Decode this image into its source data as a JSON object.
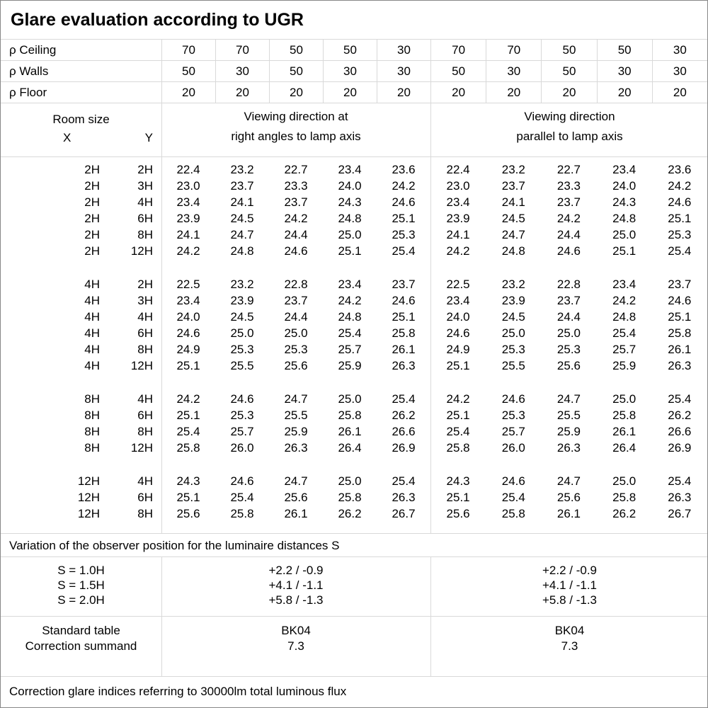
{
  "title": "Glare evaluation according to UGR",
  "colors": {
    "background": "#ffffff",
    "text": "#000000",
    "grid_line": "#d9d9d9",
    "outer_border": "#888888"
  },
  "reflectance": {
    "rows": [
      {
        "label": "ρ Ceiling",
        "values": [
          "70",
          "70",
          "50",
          "50",
          "30",
          "70",
          "70",
          "50",
          "50",
          "30"
        ]
      },
      {
        "label": "ρ Walls",
        "values": [
          "50",
          "30",
          "50",
          "30",
          "30",
          "50",
          "30",
          "50",
          "30",
          "30"
        ]
      },
      {
        "label": "ρ Floor",
        "values": [
          "20",
          "20",
          "20",
          "20",
          "20",
          "20",
          "20",
          "20",
          "20",
          "20"
        ]
      }
    ]
  },
  "header": {
    "room_size": "Room size",
    "x": "X",
    "y": "Y",
    "left_dir_line1": "Viewing direction at",
    "left_dir_line2": "right angles to lamp axis",
    "right_dir_line1": "Viewing direction",
    "right_dir_line2": "parallel to lamp axis"
  },
  "ugr": {
    "groups_2h": [
      [
        "2H",
        "2H",
        "22.4",
        "23.2",
        "22.7",
        "23.4",
        "23.6",
        "22.4",
        "23.2",
        "22.7",
        "23.4",
        "23.6"
      ],
      [
        "2H",
        "3H",
        "23.0",
        "23.7",
        "23.3",
        "24.0",
        "24.2",
        "23.0",
        "23.7",
        "23.3",
        "24.0",
        "24.2"
      ],
      [
        "2H",
        "4H",
        "23.4",
        "24.1",
        "23.7",
        "24.3",
        "24.6",
        "23.4",
        "24.1",
        "23.7",
        "24.3",
        "24.6"
      ],
      [
        "2H",
        "6H",
        "23.9",
        "24.5",
        "24.2",
        "24.8",
        "25.1",
        "23.9",
        "24.5",
        "24.2",
        "24.8",
        "25.1"
      ],
      [
        "2H",
        "8H",
        "24.1",
        "24.7",
        "24.4",
        "25.0",
        "25.3",
        "24.1",
        "24.7",
        "24.4",
        "25.0",
        "25.3"
      ],
      [
        "2H",
        "12H",
        "24.2",
        "24.8",
        "24.6",
        "25.1",
        "25.4",
        "24.2",
        "24.8",
        "24.6",
        "25.1",
        "25.4"
      ]
    ],
    "groups_4h": [
      [
        "4H",
        "2H",
        "22.5",
        "23.2",
        "22.8",
        "23.4",
        "23.7",
        "22.5",
        "23.2",
        "22.8",
        "23.4",
        "23.7"
      ],
      [
        "4H",
        "3H",
        "23.4",
        "23.9",
        "23.7",
        "24.2",
        "24.6",
        "23.4",
        "23.9",
        "23.7",
        "24.2",
        "24.6"
      ],
      [
        "4H",
        "4H",
        "24.0",
        "24.5",
        "24.4",
        "24.8",
        "25.1",
        "24.0",
        "24.5",
        "24.4",
        "24.8",
        "25.1"
      ],
      [
        "4H",
        "6H",
        "24.6",
        "25.0",
        "25.0",
        "25.4",
        "25.8",
        "24.6",
        "25.0",
        "25.0",
        "25.4",
        "25.8"
      ],
      [
        "4H",
        "8H",
        "24.9",
        "25.3",
        "25.3",
        "25.7",
        "26.1",
        "24.9",
        "25.3",
        "25.3",
        "25.7",
        "26.1"
      ],
      [
        "4H",
        "12H",
        "25.1",
        "25.5",
        "25.6",
        "25.9",
        "26.3",
        "25.1",
        "25.5",
        "25.6",
        "25.9",
        "26.3"
      ]
    ],
    "groups_8h": [
      [
        "8H",
        "4H",
        "24.2",
        "24.6",
        "24.7",
        "25.0",
        "25.4",
        "24.2",
        "24.6",
        "24.7",
        "25.0",
        "25.4"
      ],
      [
        "8H",
        "6H",
        "25.1",
        "25.3",
        "25.5",
        "25.8",
        "26.2",
        "25.1",
        "25.3",
        "25.5",
        "25.8",
        "26.2"
      ],
      [
        "8H",
        "8H",
        "25.4",
        "25.7",
        "25.9",
        "26.1",
        "26.6",
        "25.4",
        "25.7",
        "25.9",
        "26.1",
        "26.6"
      ],
      [
        "8H",
        "12H",
        "25.8",
        "26.0",
        "26.3",
        "26.4",
        "26.9",
        "25.8",
        "26.0",
        "26.3",
        "26.4",
        "26.9"
      ]
    ],
    "groups_12h": [
      [
        "12H",
        "4H",
        "24.3",
        "24.6",
        "24.7",
        "25.0",
        "25.4",
        "24.3",
        "24.6",
        "24.7",
        "25.0",
        "25.4"
      ],
      [
        "12H",
        "6H",
        "25.1",
        "25.4",
        "25.6",
        "25.8",
        "26.3",
        "25.1",
        "25.4",
        "25.6",
        "25.8",
        "26.3"
      ],
      [
        "12H",
        "8H",
        "25.6",
        "25.8",
        "26.1",
        "26.2",
        "26.7",
        "25.6",
        "25.8",
        "26.1",
        "26.2",
        "26.7"
      ]
    ]
  },
  "variation": {
    "note": "Variation of the observer position for the luminaire distances S",
    "s_labels": [
      "S = 1.0H",
      "S = 1.5H",
      "S = 2.0H"
    ],
    "left_values": [
      "+2.2 / -0.9",
      "+4.1 / -1.1",
      "+5.8 / -1.3"
    ],
    "right_values": [
      "+2.2 / -0.9",
      "+4.1 / -1.1",
      "+5.8 / -1.3"
    ]
  },
  "summary": {
    "standard_table_label": "Standard table",
    "correction_summand_label": "Correction summand",
    "left_standard_table": "BK04",
    "left_correction_summand": "7.3",
    "right_standard_table": "BK04",
    "right_correction_summand": "7.3"
  },
  "footer": "Correction glare indices referring to 30000lm total luminous flux"
}
